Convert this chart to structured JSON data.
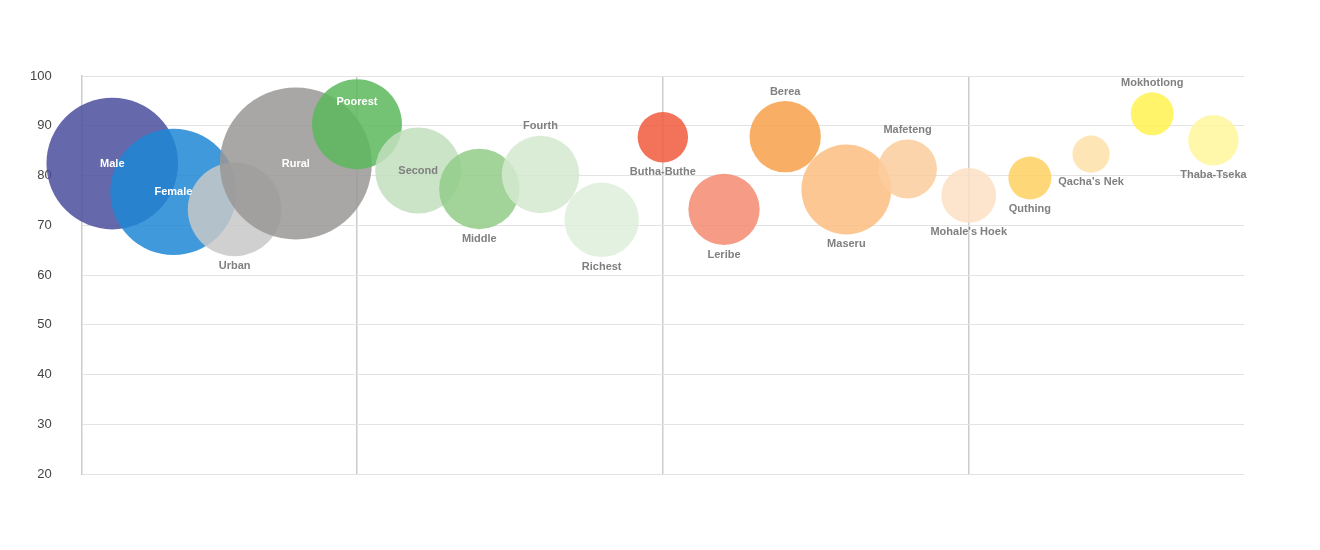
{
  "chart_data": {
    "type": "bubble",
    "categories": [
      "Male",
      "Female",
      "Urban",
      "Rural",
      "Poorest",
      "Second",
      "Middle",
      "Fourth",
      "Richest",
      "Butha-Buthe",
      "Leribe",
      "Berea",
      "Maseru",
      "Mafeteng",
      "Mohale's Hoek",
      "Quthing",
      "Qacha's Nek",
      "Mokhotlong",
      "Thaba-Tseka"
    ],
    "values": [
      82.4,
      76.7,
      73.2,
      82.4,
      90.3,
      81.0,
      77.3,
      80.2,
      71.1,
      87.7,
      73.2,
      87.8,
      77.2,
      81.3,
      76.0,
      79.5,
      84.3,
      92.4,
      87.1
    ],
    "sizes": [
      0.75,
      0.69,
      0.38,
      1,
      0.35,
      0.32,
      0.28,
      0.26,
      0.24,
      0.11,
      0.22,
      0.22,
      0.35,
      0.15,
      0.13,
      0.08,
      0.06,
      0.08,
      0.11
    ],
    "colors": [
      "#4b4d9d",
      "#1f87d3",
      "#c8c8c8",
      "#9a9696",
      "#5cb85c",
      "#c2dfbd",
      "#92cc88",
      "#d3e9cf",
      "#deeeda",
      "#f05a3c",
      "#f48a70",
      "#f7a04a",
      "#fbbd80",
      "#fbcc9e",
      "#fde0c4",
      "#fdd060",
      "#fde1a8",
      "#fff250",
      "#fff69a"
    ],
    "ylim": [
      20,
      100
    ],
    "yticks": [
      20,
      30,
      40,
      50,
      60,
      70,
      80,
      90,
      100
    ],
    "grid": true,
    "legend": false,
    "tick_labels": "y"
  }
}
